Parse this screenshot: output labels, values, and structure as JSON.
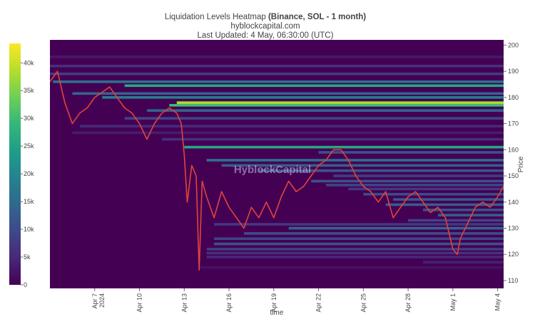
{
  "chart_data": {
    "type": "heatmap",
    "title": {
      "prefix": "Liquidation Levels Heatmap ",
      "bold": "(Binance, SOL - 1 month)",
      "line2": "hyblockcapital.com",
      "line3": "Last Updated: 4 May, 06:30:00 (UTC)"
    },
    "watermark": "HyblockCapital",
    "xlabel": "time",
    "ylabel": "Price",
    "x_ticks": [
      {
        "label": "Apr 7",
        "day": 6
      },
      {
        "label": "2024",
        "day": 6,
        "secondary": true
      },
      {
        "label": "Apr 10",
        "day": 9
      },
      {
        "label": "Apr 13",
        "day": 12
      },
      {
        "label": "Apr 16",
        "day": 15
      },
      {
        "label": "Apr 19",
        "day": 18
      },
      {
        "label": "Apr 22",
        "day": 21
      },
      {
        "label": "Apr 25",
        "day": 24
      },
      {
        "label": "Apr 28",
        "day": 27
      },
      {
        "label": "May 1",
        "day": 30
      },
      {
        "label": "May 4",
        "day": 33
      }
    ],
    "x_range_days": [
      3.0,
      33.4
    ],
    "y_ticks": [
      110,
      120,
      130,
      140,
      150,
      160,
      170,
      180,
      190,
      200
    ],
    "ylim": [
      107,
      202
    ],
    "colorbar": {
      "ticks": [
        "0",
        "5k",
        "10k",
        "15k",
        "20k",
        "25k",
        "30k",
        "35k",
        "40k"
      ],
      "range": [
        0,
        43500
      ],
      "colorscale": [
        "#440154",
        "#482878",
        "#3e4989",
        "#31688e",
        "#26828e",
        "#1f9e89",
        "#35b779",
        "#6ece58",
        "#b5de2b",
        "#fde725"
      ]
    },
    "background_color": "#440154",
    "price_series": {
      "name": "SOL price",
      "color": "#e0443a",
      "days": [
        3.0,
        3.5,
        4.0,
        4.5,
        5.0,
        5.5,
        6.0,
        6.5,
        7.0,
        7.5,
        8.0,
        8.5,
        9.0,
        9.5,
        10.0,
        10.5,
        11.0,
        11.5,
        11.8,
        12.0,
        12.2,
        12.5,
        12.8,
        13.0,
        13.2,
        13.5,
        14.0,
        14.5,
        15.0,
        15.5,
        16.0,
        16.5,
        17.0,
        17.5,
        18.0,
        18.5,
        19.0,
        19.5,
        20.0,
        20.5,
        21.0,
        21.5,
        22.0,
        22.5,
        23.0,
        23.5,
        24.0,
        24.5,
        25.0,
        25.5,
        26.0,
        26.5,
        27.0,
        27.5,
        28.0,
        28.5,
        29.0,
        29.5,
        30.0,
        30.3,
        30.5,
        31.0,
        31.5,
        32.0,
        32.5,
        33.0,
        33.4
      ],
      "prices": [
        186,
        190,
        178,
        170,
        174,
        176,
        180,
        182,
        184,
        180,
        176,
        174,
        170,
        164,
        170,
        174,
        176,
        174,
        170,
        158,
        140,
        154,
        150,
        114,
        148,
        142,
        134,
        144,
        138,
        134,
        130,
        138,
        134,
        140,
        134,
        142,
        148,
        144,
        146,
        150,
        154,
        156,
        160,
        160,
        156,
        150,
        146,
        144,
        140,
        144,
        134,
        138,
        142,
        144,
        140,
        136,
        138,
        134,
        122,
        120,
        126,
        132,
        138,
        140,
        138,
        142,
        146
      ]
    },
    "liquidation_bands": [
      {
        "from_day": 3.0,
        "price": 195.5,
        "value": 3000
      },
      {
        "from_day": 3.0,
        "price": 192.0,
        "value": 6000
      },
      {
        "from_day": 3.0,
        "price": 189.0,
        "value": 8000
      },
      {
        "from_day": 3.2,
        "price": 186.0,
        "value": 16000
      },
      {
        "from_day": 8.0,
        "price": 184.5,
        "value": 26000
      },
      {
        "from_day": 4.5,
        "price": 181.5,
        "value": 14000
      },
      {
        "from_day": 6.5,
        "price": 180.0,
        "value": 18000
      },
      {
        "from_day": 11.5,
        "price": 178.0,
        "value": 38000
      },
      {
        "from_day": 11.0,
        "price": 177.0,
        "value": 30000
      },
      {
        "from_day": 9.5,
        "price": 175.0,
        "value": 14000
      },
      {
        "from_day": 8.0,
        "price": 172.0,
        "value": 9000
      },
      {
        "from_day": 5.0,
        "price": 169.0,
        "value": 5000
      },
      {
        "from_day": 4.5,
        "price": 166.5,
        "value": 3500
      },
      {
        "from_day": 10.5,
        "price": 164.0,
        "value": 6000
      },
      {
        "from_day": 12.0,
        "price": 161.0,
        "value": 26000
      },
      {
        "from_day": 21.0,
        "price": 159.0,
        "value": 11000
      },
      {
        "from_day": 13.5,
        "price": 156.0,
        "value": 16000
      },
      {
        "from_day": 14.5,
        "price": 154.0,
        "value": 13000
      },
      {
        "from_day": 17.0,
        "price": 152.0,
        "value": 12000
      },
      {
        "from_day": 22.0,
        "price": 150.0,
        "value": 8000
      },
      {
        "from_day": 20.5,
        "price": 148.0,
        "value": 11000
      },
      {
        "from_day": 21.5,
        "price": 146.5,
        "value": 9000
      },
      {
        "from_day": 23.0,
        "price": 145.0,
        "value": 7000
      },
      {
        "from_day": 24.0,
        "price": 143.0,
        "value": 10000
      },
      {
        "from_day": 26.0,
        "price": 141.0,
        "value": 12000
      },
      {
        "from_day": 25.5,
        "price": 139.0,
        "value": 13000
      },
      {
        "from_day": 28.0,
        "price": 137.0,
        "value": 11000
      },
      {
        "from_day": 29.0,
        "price": 135.0,
        "value": 13000
      },
      {
        "from_day": 27.0,
        "price": 133.0,
        "value": 9000
      },
      {
        "from_day": 14.0,
        "price": 131.5,
        "value": 7000
      },
      {
        "from_day": 19.0,
        "price": 130.0,
        "value": 14000
      },
      {
        "from_day": 16.0,
        "price": 128.0,
        "value": 10000
      },
      {
        "from_day": 14.0,
        "price": 126.0,
        "value": 9000
      },
      {
        "from_day": 14.0,
        "price": 124.0,
        "value": 11000
      },
      {
        "from_day": 13.5,
        "price": 122.0,
        "value": 8000
      },
      {
        "from_day": 13.5,
        "price": 120.5,
        "value": 6000
      },
      {
        "from_day": 13.5,
        "price": 119.0,
        "value": 5000
      },
      {
        "from_day": 28.0,
        "price": 117.0,
        "value": 4000
      },
      {
        "from_day": 13.0,
        "price": 115.0,
        "value": 2000
      }
    ]
  }
}
